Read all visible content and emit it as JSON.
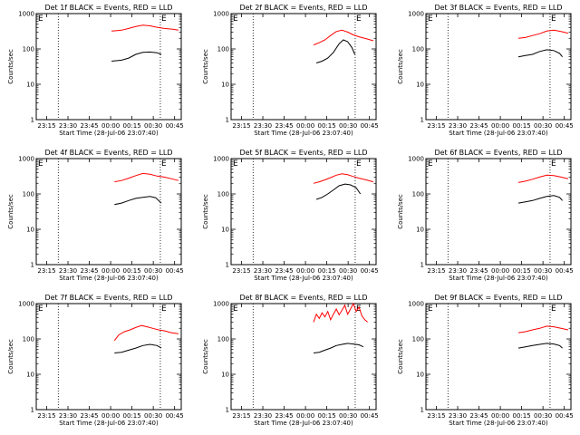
{
  "chart_data": {
    "type": "line",
    "layout": "3x3 grid",
    "xlabel": "Start Time (28-Jul-06 23:07:40)",
    "ylabel": "Counts/sec",
    "yscale": "log",
    "ylim": [
      1,
      1000
    ],
    "y_ticks": [
      "1",
      "10",
      "100",
      "1000"
    ],
    "x_ticks": [
      "23:15",
      "23:30",
      "23:45",
      "00:00",
      "00:15",
      "00:30",
      "00:45"
    ],
    "x_range_minutes_from_23_07_40": [
      0,
      102
    ],
    "vlines_minutes": [
      15.5,
      87.3
    ],
    "end_marker": "E",
    "series_colors": {
      "events": "#000000",
      "lld": "#ff0000"
    },
    "panels": [
      {
        "title": "Det 1f BLACK = Events, RED = LLD",
        "events": [
          [
            53,
            45
          ],
          [
            60,
            48
          ],
          [
            65,
            55
          ],
          [
            70,
            70
          ],
          [
            75,
            80
          ],
          [
            80,
            82
          ],
          [
            85,
            78
          ],
          [
            88,
            70
          ]
        ],
        "lld": [
          [
            53,
            320
          ],
          [
            60,
            340
          ],
          [
            65,
            380
          ],
          [
            70,
            430
          ],
          [
            75,
            470
          ],
          [
            80,
            450
          ],
          [
            85,
            410
          ],
          [
            90,
            380
          ],
          [
            96,
            360
          ],
          [
            100,
            340
          ]
        ]
      },
      {
        "title": "Det 2f BLACK = Events, RED = LLD",
        "events": [
          [
            60,
            40
          ],
          [
            64,
            45
          ],
          [
            68,
            55
          ],
          [
            72,
            80
          ],
          [
            76,
            140
          ],
          [
            79,
            180
          ],
          [
            82,
            160
          ],
          [
            85,
            110
          ],
          [
            87,
            70
          ]
        ],
        "lld": [
          [
            58,
            130
          ],
          [
            62,
            150
          ],
          [
            66,
            180
          ],
          [
            70,
            240
          ],
          [
            74,
            310
          ],
          [
            78,
            340
          ],
          [
            82,
            300
          ],
          [
            86,
            250
          ],
          [
            90,
            220
          ],
          [
            96,
            190
          ],
          [
            100,
            170
          ]
        ]
      },
      {
        "title": "Det 3f BLACK = Events, RED = LLD",
        "events": [
          [
            65,
            60
          ],
          [
            70,
            65
          ],
          [
            75,
            70
          ],
          [
            80,
            85
          ],
          [
            85,
            95
          ],
          [
            90,
            90
          ],
          [
            94,
            75
          ],
          [
            96,
            60
          ]
        ],
        "lld": [
          [
            65,
            200
          ],
          [
            70,
            210
          ],
          [
            75,
            240
          ],
          [
            80,
            270
          ],
          [
            85,
            320
          ],
          [
            90,
            340
          ],
          [
            95,
            310
          ],
          [
            100,
            280
          ]
        ]
      },
      {
        "title": "Det 4f BLACK = Events, RED = LLD",
        "events": [
          [
            55,
            50
          ],
          [
            60,
            55
          ],
          [
            65,
            65
          ],
          [
            70,
            75
          ],
          [
            75,
            80
          ],
          [
            80,
            85
          ],
          [
            84,
            78
          ],
          [
            88,
            55
          ]
        ],
        "lld": [
          [
            55,
            220
          ],
          [
            60,
            240
          ],
          [
            65,
            280
          ],
          [
            70,
            330
          ],
          [
            75,
            380
          ],
          [
            80,
            360
          ],
          [
            85,
            320
          ],
          [
            90,
            300
          ],
          [
            95,
            270
          ],
          [
            100,
            240
          ]
        ]
      },
      {
        "title": "Det 5f BLACK = Events, RED = LLD",
        "events": [
          [
            60,
            70
          ],
          [
            64,
            80
          ],
          [
            68,
            100
          ],
          [
            72,
            130
          ],
          [
            76,
            170
          ],
          [
            80,
            190
          ],
          [
            84,
            180
          ],
          [
            88,
            150
          ],
          [
            91,
            100
          ]
        ],
        "lld": [
          [
            58,
            200
          ],
          [
            62,
            220
          ],
          [
            66,
            250
          ],
          [
            70,
            290
          ],
          [
            74,
            340
          ],
          [
            78,
            370
          ],
          [
            82,
            350
          ],
          [
            86,
            310
          ],
          [
            90,
            280
          ],
          [
            95,
            250
          ],
          [
            100,
            220
          ]
        ]
      },
      {
        "title": "Det 6f BLACK = Events, RED = LLD",
        "events": [
          [
            65,
            55
          ],
          [
            70,
            60
          ],
          [
            75,
            65
          ],
          [
            80,
            75
          ],
          [
            85,
            85
          ],
          [
            90,
            90
          ],
          [
            94,
            80
          ],
          [
            96,
            65
          ]
        ],
        "lld": [
          [
            65,
            210
          ],
          [
            70,
            230
          ],
          [
            75,
            260
          ],
          [
            80,
            300
          ],
          [
            85,
            340
          ],
          [
            90,
            330
          ],
          [
            95,
            300
          ],
          [
            100,
            270
          ]
        ]
      },
      {
        "title": "Det 7f BLACK = Events, RED = LLD",
        "events": [
          [
            55,
            40
          ],
          [
            60,
            42
          ],
          [
            65,
            48
          ],
          [
            70,
            55
          ],
          [
            75,
            65
          ],
          [
            80,
            70
          ],
          [
            85,
            65
          ],
          [
            88,
            55
          ]
        ],
        "lld": [
          [
            55,
            90
          ],
          [
            58,
            130
          ],
          [
            62,
            160
          ],
          [
            66,
            180
          ],
          [
            70,
            210
          ],
          [
            74,
            240
          ],
          [
            78,
            220
          ],
          [
            82,
            200
          ],
          [
            86,
            180
          ],
          [
            90,
            170
          ],
          [
            95,
            150
          ],
          [
            100,
            140
          ]
        ]
      },
      {
        "title": "Det 8f BLACK = Events, RED = LLD",
        "events": [
          [
            58,
            40
          ],
          [
            62,
            42
          ],
          [
            66,
            48
          ],
          [
            70,
            55
          ],
          [
            74,
            65
          ],
          [
            78,
            70
          ],
          [
            82,
            75
          ],
          [
            86,
            72
          ],
          [
            90,
            68
          ],
          [
            93,
            60
          ]
        ],
        "lld": [
          [
            58,
            300
          ],
          [
            60,
            500
          ],
          [
            62,
            380
          ],
          [
            64,
            550
          ],
          [
            66,
            420
          ],
          [
            68,
            600
          ],
          [
            70,
            350
          ],
          [
            72,
            500
          ],
          [
            74,
            700
          ],
          [
            76,
            480
          ],
          [
            78,
            650
          ],
          [
            80,
            900
          ],
          [
            82,
            500
          ],
          [
            84,
            700
          ],
          [
            86,
            1000
          ],
          [
            88,
            600
          ],
          [
            90,
            800
          ],
          [
            92,
            450
          ],
          [
            94,
            350
          ],
          [
            96,
            300
          ]
        ]
      },
      {
        "title": "Det 9f BLACK = Events, RED = LLD",
        "events": [
          [
            65,
            55
          ],
          [
            70,
            60
          ],
          [
            75,
            65
          ],
          [
            80,
            70
          ],
          [
            85,
            75
          ],
          [
            90,
            72
          ],
          [
            94,
            65
          ],
          [
            96,
            55
          ]
        ],
        "lld": [
          [
            65,
            150
          ],
          [
            70,
            160
          ],
          [
            75,
            180
          ],
          [
            80,
            200
          ],
          [
            85,
            230
          ],
          [
            90,
            220
          ],
          [
            95,
            200
          ],
          [
            100,
            180
          ]
        ]
      }
    ]
  }
}
